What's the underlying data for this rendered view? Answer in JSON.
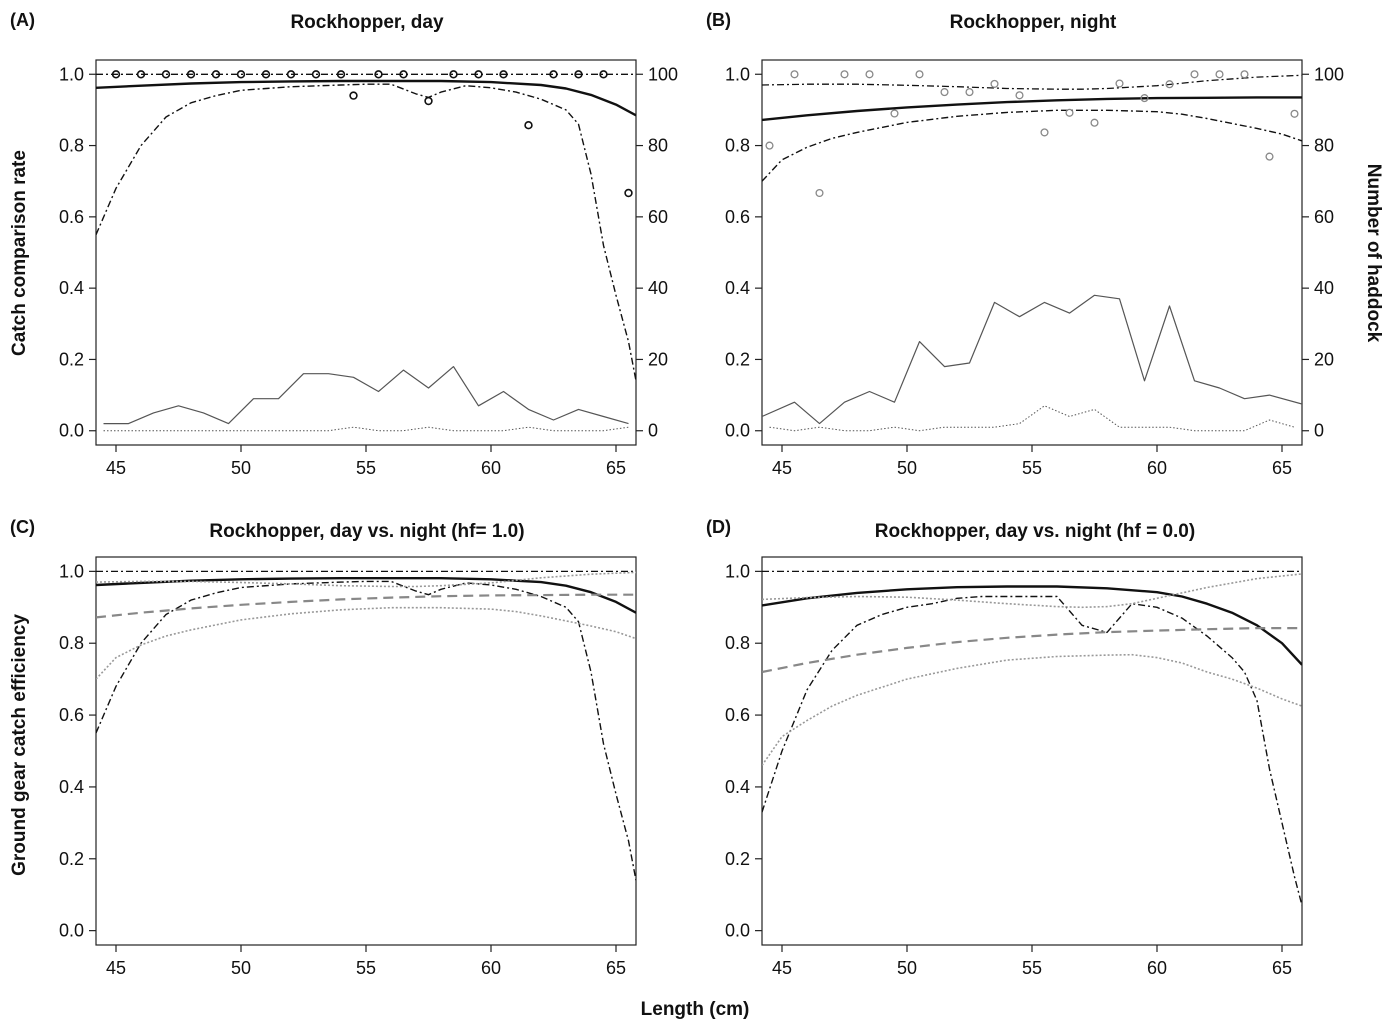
{
  "figure": {
    "xlabel": "Length (cm)",
    "ylabel_top_left": "Catch comparison rate",
    "ylabel_top_right": "Number of haddock",
    "ylabel_bottom_left": "Ground gear catch efficiency"
  },
  "chart_data": [
    {
      "type": "line",
      "panel_label": "(A)",
      "title": "Rockhopper, day",
      "xlim": [
        44.2,
        65.8
      ],
      "ylim": [
        -0.04,
        1.04
      ],
      "ylim_right": [
        -4,
        104
      ],
      "x_ticks": [
        "45",
        "50",
        "55",
        "60",
        "65"
      ],
      "y_ticks": [
        "0.0",
        "0.2",
        "0.4",
        "0.6",
        "0.8",
        "1.0"
      ],
      "y2_ticks": [
        "0",
        "20",
        "40",
        "60",
        "80",
        "100"
      ],
      "curves": {
        "estimate": {
          "x": [
            44.2,
            46,
            48,
            50,
            52,
            54,
            56,
            58,
            60,
            62,
            63,
            64,
            65,
            65.8
          ],
          "y": [
            0.962,
            0.968,
            0.974,
            0.978,
            0.98,
            0.981,
            0.981,
            0.981,
            0.978,
            0.97,
            0.96,
            0.942,
            0.915,
            0.885
          ]
        },
        "ci_low": {
          "x": [
            44.2,
            45,
            46,
            47,
            48,
            49,
            50,
            52,
            54,
            55,
            56,
            57,
            57.5,
            58,
            59,
            60,
            61,
            62,
            63,
            63.5,
            64,
            64.5,
            65,
            65.5,
            65.8
          ],
          "y": [
            0.55,
            0.68,
            0.8,
            0.88,
            0.92,
            0.94,
            0.955,
            0.965,
            0.97,
            0.972,
            0.972,
            0.945,
            0.935,
            0.95,
            0.968,
            0.962,
            0.95,
            0.93,
            0.9,
            0.86,
            0.72,
            0.52,
            0.38,
            0.25,
            0.14
          ]
        },
        "ci_high": {
          "x": [
            44.2,
            65.8
          ],
          "y": [
            1.0,
            1.0
          ]
        },
        "n_test": {
          "x": [
            44.5,
            45.5,
            46.5,
            47.5,
            48.5,
            49.5,
            50.5,
            51.5,
            52.5,
            53.5,
            54.5,
            55.5,
            56.5,
            57.5,
            58.5,
            59.5,
            60.5,
            61.5,
            62.5,
            63.5,
            64.5,
            65.5
          ],
          "y": [
            2,
            2,
            5,
            7,
            5,
            2,
            9,
            9,
            16,
            16,
            15,
            11,
            17,
            12,
            18,
            7,
            11,
            6,
            3,
            6,
            4,
            2
          ]
        },
        "n_control": {
          "x": [
            44.5,
            45.5,
            46.5,
            47.5,
            48.5,
            49.5,
            50.5,
            51.5,
            52.5,
            53.5,
            54.5,
            55.5,
            56.5,
            57.5,
            58.5,
            59.5,
            60.5,
            61.5,
            62.5,
            63.5,
            64.5,
            65.5
          ],
          "y": [
            0,
            0,
            0,
            0,
            0,
            0,
            0,
            0,
            0,
            0,
            1,
            0,
            0,
            1,
            0,
            0,
            0,
            1,
            0,
            0,
            0,
            1
          ]
        }
      },
      "points": {
        "x": [
          45,
          46,
          47,
          48,
          49,
          50,
          51,
          52,
          53,
          54,
          54.5,
          55.5,
          56.5,
          57.5,
          58.5,
          59.5,
          60.5,
          61.5,
          62.5,
          63.5,
          64.5,
          65.5
        ],
        "y": [
          1.0,
          1.0,
          1.0,
          1.0,
          1.0,
          1.0,
          1.0,
          1.0,
          1.0,
          1.0,
          0.94,
          1.0,
          1.0,
          0.925,
          1.0,
          1.0,
          1.0,
          0.857,
          1.0,
          1.0,
          1.0,
          0.667
        ]
      }
    },
    {
      "type": "line",
      "panel_label": "(B)",
      "title": "Rockhopper, night",
      "xlim": [
        44.2,
        65.8
      ],
      "ylim": [
        -0.04,
        1.04
      ],
      "ylim_right": [
        -4,
        104
      ],
      "x_ticks": [
        "45",
        "50",
        "55",
        "60",
        "65"
      ],
      "y_ticks": [
        "0.0",
        "0.2",
        "0.4",
        "0.6",
        "0.8",
        "1.0"
      ],
      "y2_ticks": [
        "0",
        "20",
        "40",
        "60",
        "80",
        "100"
      ],
      "curves": {
        "estimate": {
          "x": [
            44.2,
            46,
            48,
            50,
            52,
            54,
            56,
            58,
            60,
            62,
            64,
            65.8
          ],
          "y": [
            0.872,
            0.885,
            0.897,
            0.907,
            0.915,
            0.922,
            0.927,
            0.931,
            0.933,
            0.934,
            0.935,
            0.935
          ]
        },
        "ci_low": {
          "x": [
            44.2,
            45,
            46,
            47,
            48,
            50,
            52,
            54,
            56,
            58,
            60,
            61,
            62,
            63,
            64,
            65,
            65.8
          ],
          "y": [
            0.7,
            0.76,
            0.795,
            0.82,
            0.837,
            0.865,
            0.882,
            0.893,
            0.899,
            0.899,
            0.895,
            0.888,
            0.876,
            0.862,
            0.848,
            0.832,
            0.813
          ]
        },
        "ci_high": {
          "x": [
            44.2,
            46,
            48,
            50,
            52,
            54,
            56,
            57,
            58,
            60,
            62,
            64,
            65.8
          ],
          "y": [
            0.97,
            0.972,
            0.972,
            0.969,
            0.965,
            0.96,
            0.958,
            0.958,
            0.96,
            0.968,
            0.982,
            0.992,
            0.997
          ]
        },
        "n_test": {
          "x": [
            44.2,
            45.5,
            46.5,
            47.5,
            48.5,
            49.5,
            50.5,
            51.5,
            52.5,
            53.5,
            54.5,
            55.5,
            56.5,
            57.5,
            58.5,
            59.5,
            60.5,
            61.5,
            62.5,
            63.5,
            64.5,
            65.8
          ],
          "y": [
            4,
            8,
            2,
            8,
            11,
            8,
            25,
            18,
            19,
            36,
            32,
            36,
            33,
            38,
            37,
            14,
            35,
            14,
            12,
            9,
            10,
            7.5
          ]
        },
        "n_control": {
          "x": [
            44.5,
            45.5,
            46.5,
            47.5,
            48.5,
            49.5,
            50.5,
            51.5,
            52.5,
            53.5,
            54.5,
            55.5,
            56.5,
            57.5,
            58.5,
            59.5,
            60.5,
            61.5,
            62.5,
            63.5,
            64.5,
            65.5
          ],
          "y": [
            1,
            0,
            1,
            0,
            0,
            1,
            0,
            1,
            1,
            1,
            2,
            7,
            4,
            6,
            1,
            1,
            1,
            0,
            0,
            0,
            3,
            1
          ]
        }
      },
      "points": {
        "x": [
          44.5,
          45.5,
          46.5,
          47.5,
          48.5,
          49.5,
          50.5,
          51.5,
          52.5,
          53.5,
          54.5,
          55.5,
          56.5,
          57.5,
          58.5,
          59.5,
          60.5,
          61.5,
          62.5,
          63.5,
          64.5,
          65.5
        ],
        "y": [
          0.8,
          1.0,
          0.667,
          1.0,
          1.0,
          0.89,
          1.0,
          0.95,
          0.95,
          0.973,
          0.941,
          0.837,
          0.892,
          0.864,
          0.974,
          0.933,
          0.972,
          1.0,
          1.0,
          1.0,
          0.769,
          0.889
        ]
      }
    },
    {
      "type": "line",
      "panel_label": "(C)",
      "title": "Rockhopper, day vs. night (hf= 1.0)",
      "xlim": [
        44.2,
        65.8
      ],
      "ylim": [
        -0.04,
        1.04
      ],
      "x_ticks": [
        "45",
        "50",
        "55",
        "60",
        "65"
      ],
      "y_ticks": [
        "0.0",
        "0.2",
        "0.4",
        "0.6",
        "0.8",
        "1.0"
      ],
      "curves": {
        "day_estimate": {
          "x": [
            44.2,
            46,
            48,
            50,
            52,
            54,
            56,
            58,
            60,
            62,
            63,
            64,
            65,
            65.8
          ],
          "y": [
            0.962,
            0.968,
            0.974,
            0.978,
            0.98,
            0.981,
            0.981,
            0.981,
            0.978,
            0.97,
            0.96,
            0.942,
            0.915,
            0.885
          ]
        },
        "day_ci_low": {
          "x": [
            44.2,
            45,
            46,
            47,
            48,
            49,
            50,
            52,
            54,
            55,
            56,
            57,
            57.5,
            58,
            59,
            60,
            61,
            62,
            63,
            63.5,
            64,
            64.5,
            65,
            65.5,
            65.8
          ],
          "y": [
            0.55,
            0.68,
            0.8,
            0.88,
            0.92,
            0.94,
            0.955,
            0.965,
            0.97,
            0.972,
            0.972,
            0.945,
            0.935,
            0.95,
            0.968,
            0.962,
            0.95,
            0.93,
            0.9,
            0.86,
            0.72,
            0.52,
            0.38,
            0.25,
            0.14
          ]
        },
        "day_ci_high": {
          "x": [
            44.2,
            65.8
          ],
          "y": [
            1.0,
            1.0
          ]
        },
        "night_estimate": {
          "x": [
            44.2,
            46,
            48,
            50,
            52,
            54,
            56,
            58,
            60,
            62,
            64,
            65.8
          ],
          "y": [
            0.872,
            0.885,
            0.897,
            0.907,
            0.915,
            0.922,
            0.927,
            0.931,
            0.933,
            0.934,
            0.935,
            0.935
          ]
        },
        "night_ci_low": {
          "x": [
            44.2,
            45,
            46,
            47,
            48,
            50,
            52,
            54,
            56,
            58,
            60,
            61,
            62,
            63,
            64,
            65,
            65.8
          ],
          "y": [
            0.7,
            0.76,
            0.795,
            0.82,
            0.837,
            0.865,
            0.882,
            0.893,
            0.899,
            0.899,
            0.895,
            0.888,
            0.876,
            0.862,
            0.848,
            0.832,
            0.813
          ]
        },
        "night_ci_high": {
          "x": [
            44.2,
            46,
            48,
            50,
            52,
            54,
            56,
            57,
            58,
            60,
            62,
            64,
            65.8
          ],
          "y": [
            0.97,
            0.972,
            0.972,
            0.969,
            0.965,
            0.96,
            0.958,
            0.958,
            0.96,
            0.968,
            0.982,
            0.992,
            0.997
          ]
        }
      }
    },
    {
      "type": "line",
      "panel_label": "(D)",
      "title": "Rockhopper, day vs. night (hf = 0.0)",
      "xlim": [
        44.2,
        65.8
      ],
      "ylim": [
        -0.04,
        1.04
      ],
      "x_ticks": [
        "45",
        "50",
        "55",
        "60",
        "65"
      ],
      "y_ticks": [
        "0.0",
        "0.2",
        "0.4",
        "0.6",
        "0.8",
        "1.0"
      ],
      "curves": {
        "day_estimate": {
          "x": [
            44.2,
            46,
            48,
            50,
            52,
            54,
            56,
            58,
            60,
            61,
            62,
            63,
            64,
            65,
            65.8
          ],
          "y": [
            0.905,
            0.925,
            0.94,
            0.95,
            0.956,
            0.958,
            0.958,
            0.953,
            0.942,
            0.93,
            0.91,
            0.885,
            0.85,
            0.8,
            0.74
          ]
        },
        "day_ci_low": {
          "x": [
            44.2,
            45,
            46,
            47,
            48,
            49,
            50,
            51,
            52,
            53,
            54,
            55,
            56,
            57,
            58,
            59,
            60,
            61,
            62,
            63,
            63.5,
            64,
            64.5,
            65,
            65.5,
            65.8
          ],
          "y": [
            0.33,
            0.5,
            0.67,
            0.78,
            0.85,
            0.88,
            0.9,
            0.91,
            0.925,
            0.93,
            0.93,
            0.93,
            0.93,
            0.85,
            0.83,
            0.91,
            0.9,
            0.87,
            0.82,
            0.76,
            0.72,
            0.64,
            0.45,
            0.3,
            0.15,
            0.07
          ]
        },
        "day_ci_high": {
          "x": [
            44.2,
            65.8
          ],
          "y": [
            1.0,
            1.0
          ]
        },
        "night_estimate": {
          "x": [
            44.2,
            46,
            48,
            50,
            52,
            54,
            56,
            58,
            60,
            62,
            64,
            65.8
          ],
          "y": [
            0.72,
            0.745,
            0.768,
            0.787,
            0.803,
            0.815,
            0.824,
            0.831,
            0.835,
            0.839,
            0.842,
            0.842
          ]
        },
        "night_ci_low": {
          "x": [
            44.2,
            45,
            46,
            47,
            48,
            50,
            52,
            54,
            56,
            58,
            59,
            60,
            61,
            62,
            63,
            64,
            65,
            65.8
          ],
          "y": [
            0.46,
            0.54,
            0.585,
            0.625,
            0.655,
            0.7,
            0.73,
            0.753,
            0.763,
            0.767,
            0.768,
            0.76,
            0.745,
            0.72,
            0.7,
            0.675,
            0.645,
            0.625
          ]
        },
        "night_ci_high": {
          "x": [
            44.2,
            46,
            48,
            50,
            52,
            54,
            56,
            57,
            58,
            59,
            60,
            62,
            64,
            65.8
          ],
          "y": [
            0.922,
            0.927,
            0.93,
            0.928,
            0.92,
            0.91,
            0.902,
            0.9,
            0.902,
            0.91,
            0.925,
            0.955,
            0.98,
            0.993
          ]
        }
      }
    }
  ]
}
